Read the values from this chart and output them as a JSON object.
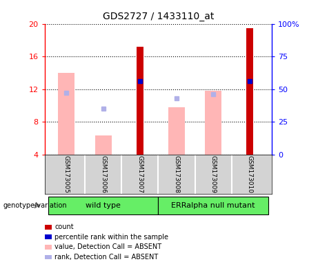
{
  "title": "GDS2727 / 1433110_at",
  "samples": [
    "GSM173005",
    "GSM173006",
    "GSM173007",
    "GSM173008",
    "GSM173009",
    "GSM173010"
  ],
  "groups_order": [
    "wild type",
    "ERRalpha null mutant"
  ],
  "groups": {
    "wild type": [
      0,
      1,
      2
    ],
    "ERRalpha null mutant": [
      3,
      4,
      5
    ]
  },
  "count_values": [
    null,
    null,
    17.2,
    null,
    null,
    19.5
  ],
  "percentile_rank": [
    null,
    null,
    56,
    null,
    null,
    56
  ],
  "value_absent": [
    14.0,
    6.3,
    null,
    9.8,
    11.8,
    null
  ],
  "rank_absent": [
    47,
    35,
    null,
    43,
    46,
    null
  ],
  "ylim_left": [
    4,
    20
  ],
  "ylim_right": [
    0,
    100
  ],
  "yticks_left": [
    4,
    8,
    12,
    16,
    20
  ],
  "yticks_right": [
    0,
    25,
    50,
    75,
    100
  ],
  "ytick_labels_right": [
    "0",
    "25",
    "50",
    "75",
    "100%"
  ],
  "count_color": "#cc0000",
  "percentile_color": "#0000cc",
  "value_absent_color": "#ffb6b6",
  "rank_absent_color": "#b0b0e8",
  "bar_bottom": 4,
  "background_color": "#ffffff",
  "gray_box_color": "#d3d3d3",
  "green_color": "#66ee66",
  "title_fontsize": 10,
  "label_fontsize": 8,
  "tick_fontsize": 8,
  "legend_fontsize": 7,
  "sample_fontsize": 6.5
}
